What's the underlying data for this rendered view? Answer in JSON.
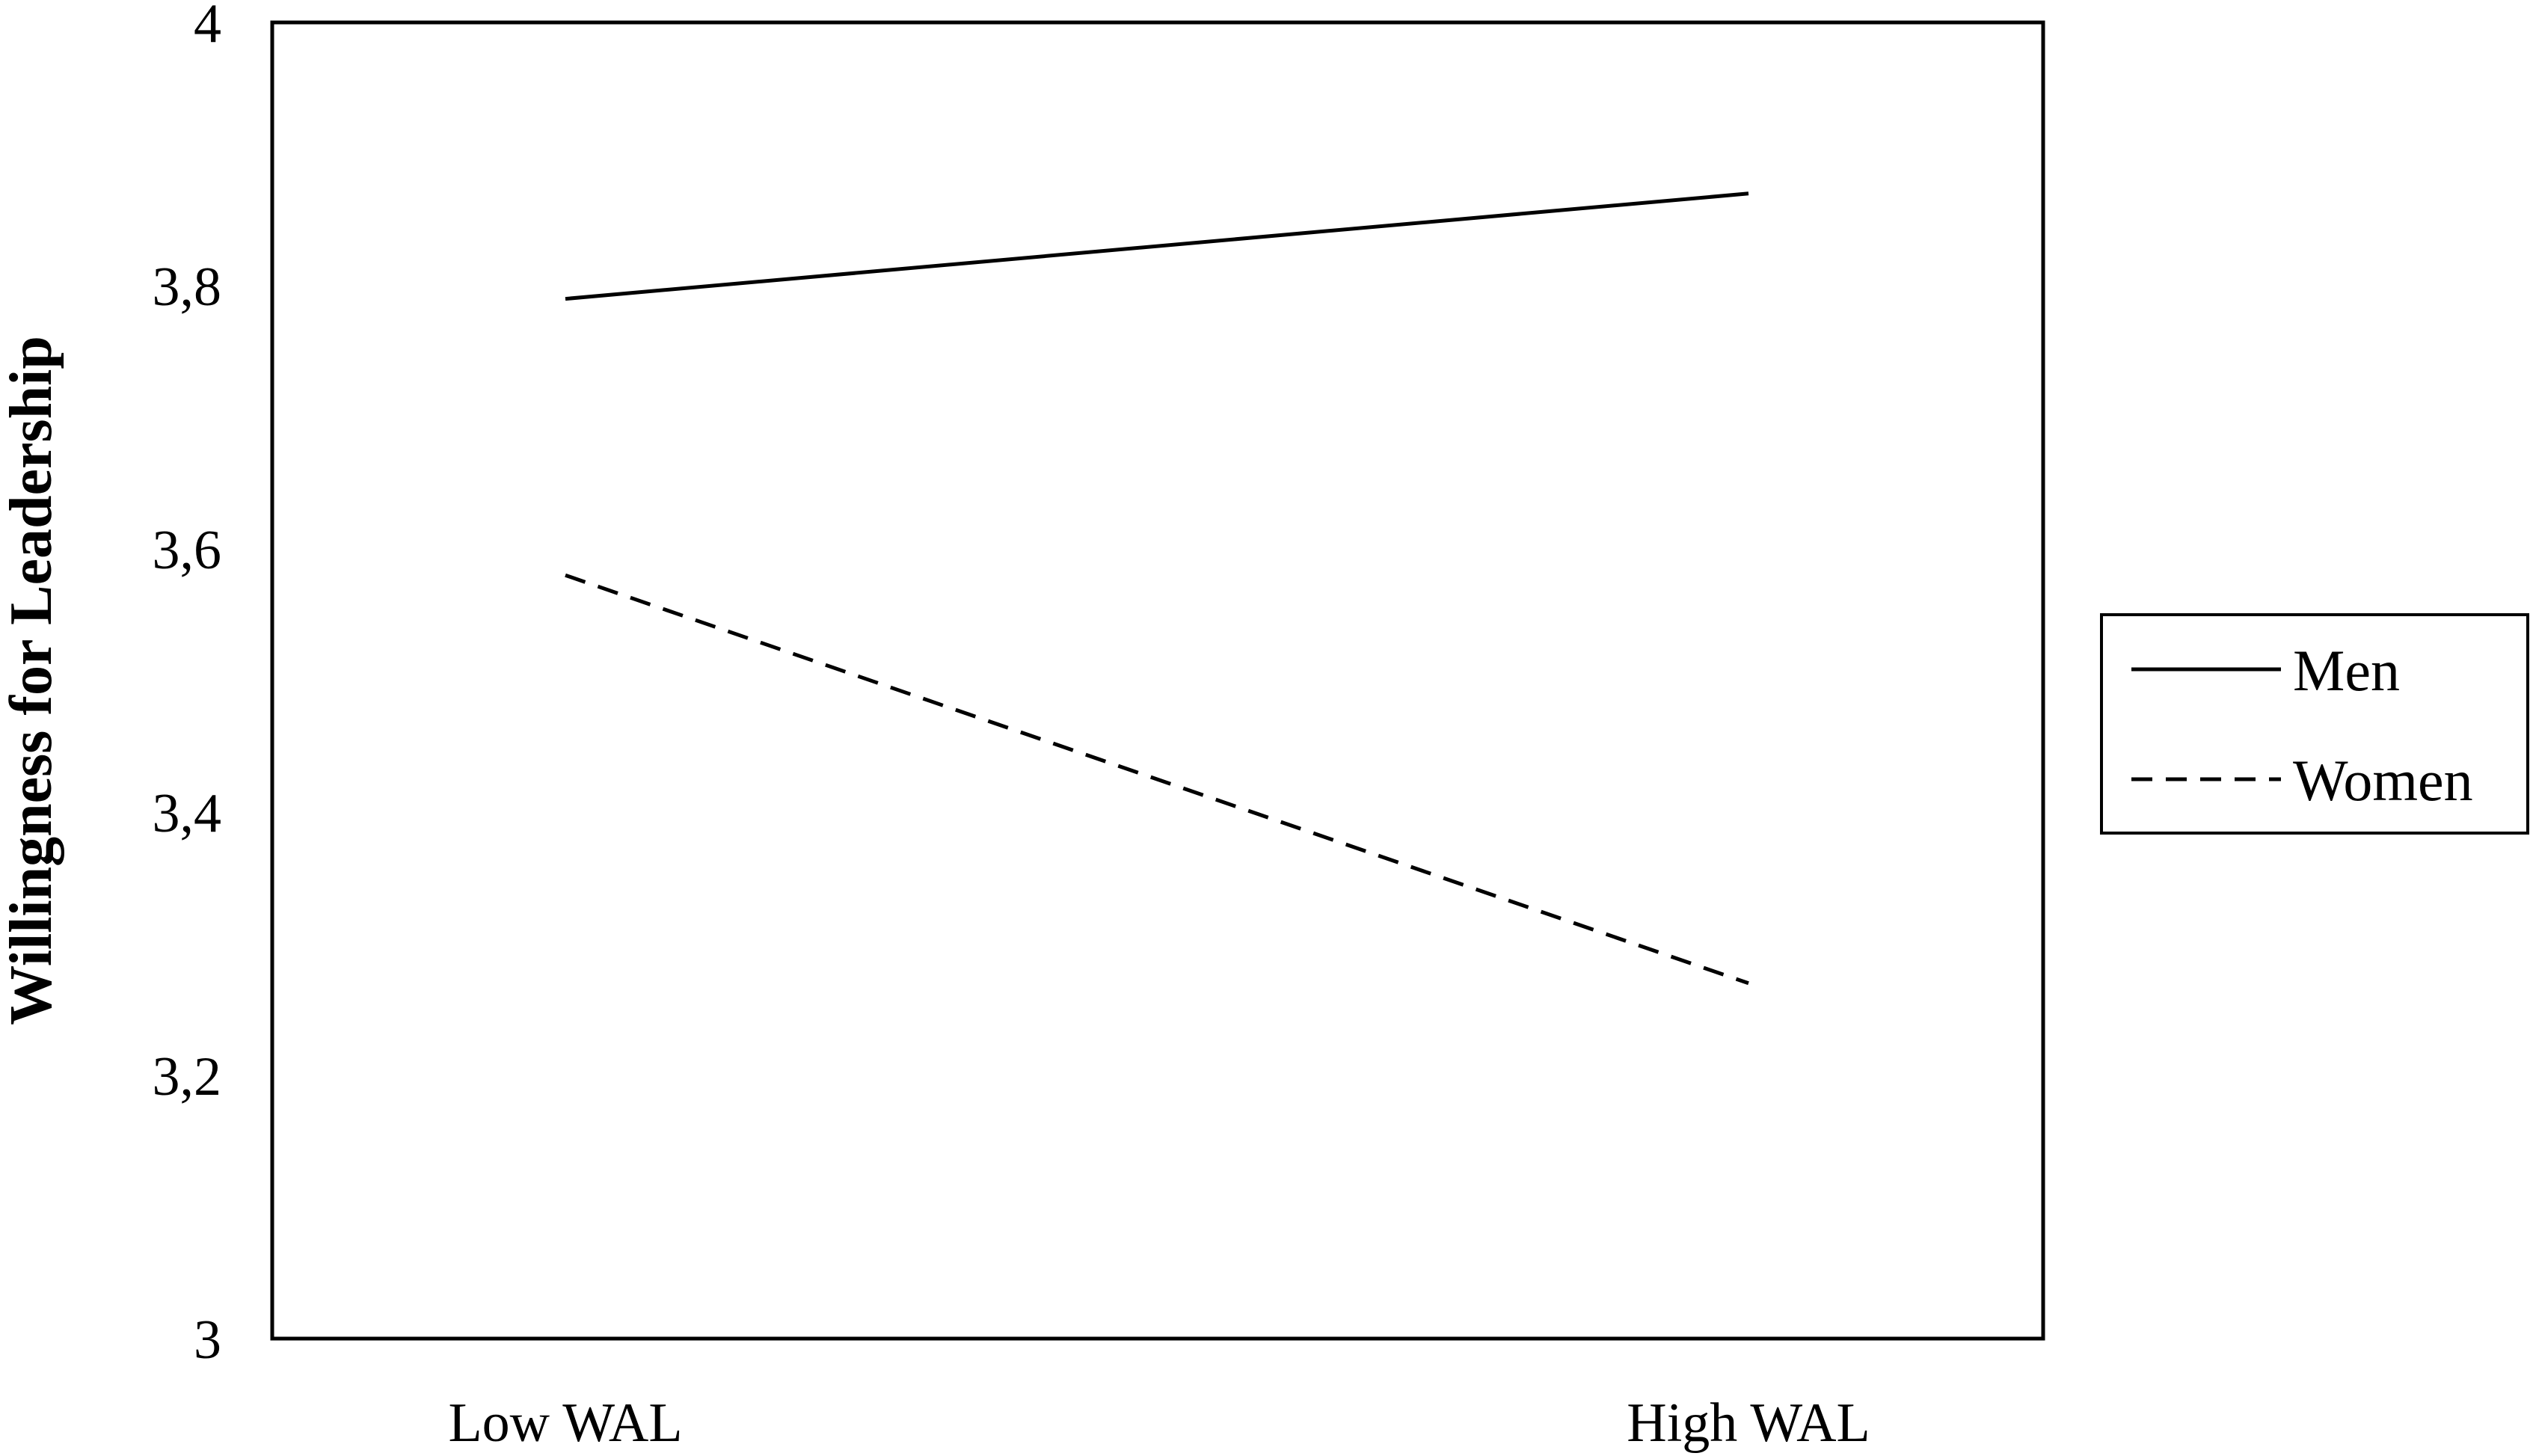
{
  "chart_data": {
    "type": "line",
    "categories": [
      "Low WAL",
      "High WAL"
    ],
    "series": [
      {
        "name": "Men",
        "values": [
          3.79,
          3.87
        ],
        "style": "solid",
        "color": "#000000"
      },
      {
        "name": "Women",
        "values": [
          3.58,
          3.27
        ],
        "style": "dashed",
        "color": "#000000"
      }
    ],
    "ylabel": "Willingness for Leadership",
    "ylim": [
      3,
      4
    ],
    "yticks": [
      "3",
      "3,2",
      "3,4",
      "3,6",
      "3,8",
      "4"
    ],
    "grid": false,
    "legend_position": "right"
  }
}
